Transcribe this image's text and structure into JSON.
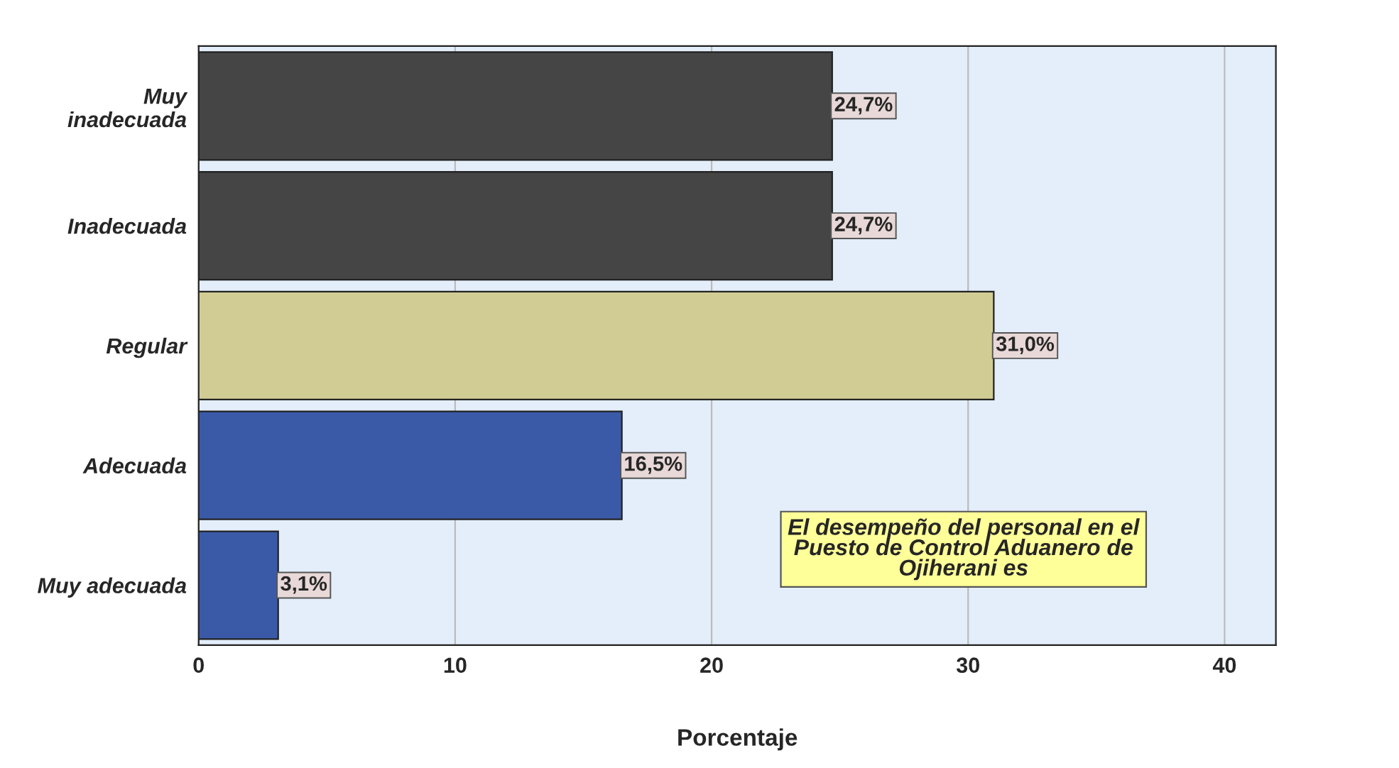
{
  "chart_data": {
    "type": "bar",
    "orientation": "horizontal",
    "categories": [
      "Muy\ninadecuada",
      "Inadecuada",
      "Regular",
      "Adecuada",
      "Muy adecuada"
    ],
    "values": [
      24.7,
      24.7,
      31.0,
      16.5,
      3.1
    ],
    "colors": [
      "#454545",
      "#454545",
      "#d1cc94",
      "#3a5aa8",
      "#3a5aa8"
    ],
    "value_labels": [
      "24,7%",
      "24,7%",
      "31,0%",
      "16,5%",
      "3,1%"
    ],
    "xlim": [
      0,
      42
    ],
    "xticks": [
      0,
      10,
      20,
      30,
      40
    ],
    "xlabel": "Porcentaje",
    "grid": "x",
    "annotations": [
      "El desempeño del personal en el\nPuesto de Control Aduanero de\nOjiherani es"
    ]
  }
}
